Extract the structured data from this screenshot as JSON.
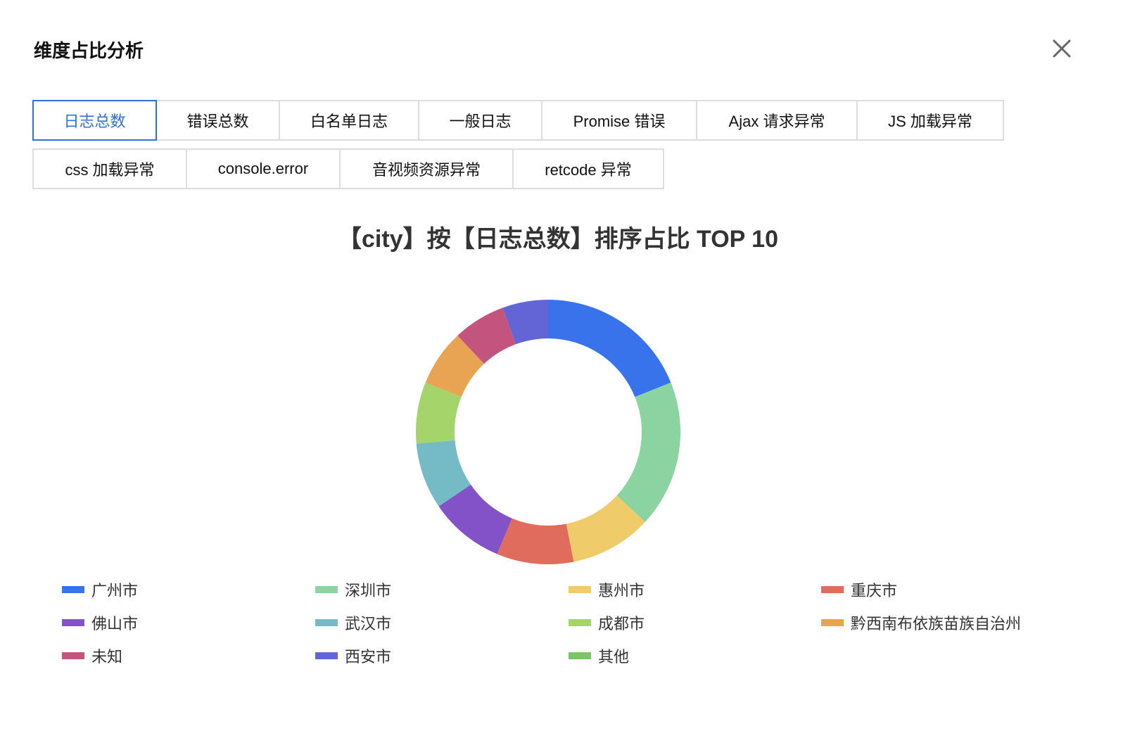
{
  "dialog": {
    "title": "维度占比分析",
    "close_icon": "close-icon"
  },
  "tabs": [
    {
      "label": "日志总数",
      "active": true
    },
    {
      "label": "错误总数"
    },
    {
      "label": "白名单日志"
    },
    {
      "label": "一般日志"
    },
    {
      "label": "Promise 错误"
    },
    {
      "label": "Ajax 请求异常"
    },
    {
      "label": "JS 加载异常"
    },
    {
      "label": "css 加载异常"
    },
    {
      "label": "console.error"
    },
    {
      "label": "音视频资源异常"
    },
    {
      "label": "retcode 异常"
    }
  ],
  "chart_data": {
    "type": "pie",
    "donut": true,
    "title": "【city】按【日志总数】排序占比 TOP 10",
    "legend_position": "bottom",
    "unit": "percent",
    "categories": [
      "广州市",
      "深圳市",
      "惠州市",
      "重庆市",
      "佛山市",
      "武汉市",
      "成都市",
      "黔西南布依族苗族自治州",
      "未知",
      "西安市",
      "其他"
    ],
    "values": [
      18.9,
      18.0,
      10.0,
      9.4,
      9.2,
      8.1,
      7.5,
      6.9,
      6.4,
      5.6,
      0
    ],
    "colors": [
      "#3873eb",
      "#8bd3a0",
      "#f0cb69",
      "#e06c5d",
      "#8352c9",
      "#75bbc6",
      "#a5d46a",
      "#e8a452",
      "#c2547e",
      "#6365d6",
      "#7dc36b"
    ]
  }
}
